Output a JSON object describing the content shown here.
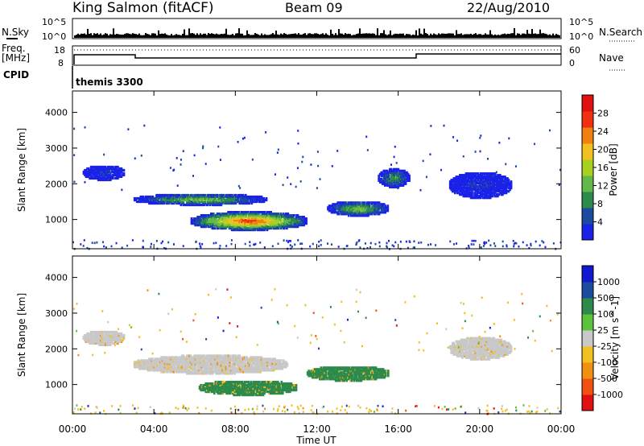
{
  "header": {
    "title": "King Salmon (fitACF)",
    "beam": "Beam 09",
    "date": "22/Aug/2010"
  },
  "noise_panel": {
    "left_label": "N.Sky",
    "right_label": "N.Search",
    "ticks": [
      "10^5",
      "10^0"
    ]
  },
  "freq_panel": {
    "left_label_1": "Freq.",
    "left_label_2": "[MHz]",
    "left_ticks": [
      "18",
      "8"
    ],
    "right_label": "Nave",
    "right_ticks": [
      "60",
      "0"
    ]
  },
  "cpid": {
    "label": "CPID",
    "value": "themis 3300"
  },
  "x_axis": {
    "title": "Time UT",
    "ticks": [
      "00:00",
      "04:00",
      "08:00",
      "12:00",
      "16:00",
      "20:00",
      "00:00"
    ]
  },
  "colors": {
    "power": [
      "#1a22e8",
      "#1c4a9e",
      "#2c8a4a",
      "#64b84a",
      "#a8d020",
      "#f0c020",
      "#f08010",
      "#f03010",
      "#e01010"
    ],
    "velocity": [
      "#1018d0",
      "#1c4a9e",
      "#2c8a4a",
      "#5cc23c",
      "#c8c8c8",
      "#f0c020",
      "#f09010",
      "#f05010",
      "#e01010"
    ],
    "power_colorbar_ticks": [
      "28",
      "24",
      "20",
      "16",
      "12",
      "8",
      "4"
    ],
    "velocity_colorbar_ticks": [
      "1000",
      "500",
      "100",
      "25",
      "-25",
      "-100",
      "-500",
      "-1000"
    ]
  },
  "chart_data": [
    {
      "type": "heatmap",
      "title": "",
      "xlabel": "",
      "ylabel": "Slant Range [km]",
      "colorbar_label": "Power [dB]",
      "xlim": [
        0,
        24
      ],
      "ylim": [
        180,
        4600
      ],
      "y_ticks": [
        "1000",
        "2000",
        "3000",
        "4000"
      ],
      "colorbar_ticks": [
        "28",
        "24",
        "20",
        "16",
        "12",
        "8",
        "4"
      ],
      "regions": [
        {
          "time_range": [
            5.8,
            11.5
          ],
          "range_km": [
            700,
            1200
          ],
          "value_db": 28
        },
        {
          "time_range": [
            3.0,
            9.5
          ],
          "range_km": [
            1400,
            1700
          ],
          "value_db": 16
        },
        {
          "time_range": [
            12.5,
            15.5
          ],
          "range_km": [
            1100,
            1500
          ],
          "value_db": 16
        },
        {
          "time_range": [
            0.5,
            2.5
          ],
          "range_km": [
            2100,
            2500
          ],
          "value_db": 8
        },
        {
          "time_range": [
            15.0,
            16.5
          ],
          "range_km": [
            1900,
            2400
          ],
          "value_db": 12
        },
        {
          "time_range": [
            18.5,
            21.5
          ],
          "range_km": [
            1600,
            2300
          ],
          "value_db": 8
        }
      ]
    },
    {
      "type": "heatmap",
      "title": "",
      "xlabel": "Time UT",
      "ylabel": "Slant Range [km]",
      "colorbar_label": "Velocity [m s^-1]",
      "xlim": [
        0,
        24
      ],
      "ylim": [
        180,
        4600
      ],
      "y_ticks": [
        "1000",
        "2000",
        "3000",
        "4000"
      ],
      "colorbar_ticks": [
        "1000",
        "500",
        "100",
        "25",
        "-25",
        "-100",
        "-500",
        "-1000"
      ],
      "regions": [
        {
          "time_range": [
            6.2,
            11.0
          ],
          "range_km": [
            700,
            1100
          ],
          "value_ms": 150
        },
        {
          "time_range": [
            11.5,
            15.5
          ],
          "range_km": [
            1100,
            1500
          ],
          "value_ms": 120
        },
        {
          "time_range": [
            3.0,
            10.5
          ],
          "range_km": [
            1300,
            1800
          ],
          "value_ms": 0
        },
        {
          "time_range": [
            0.5,
            2.5
          ],
          "range_km": [
            2100,
            2500
          ],
          "value_ms": 0
        },
        {
          "time_range": [
            18.5,
            21.5
          ],
          "range_km": [
            1700,
            2300
          ],
          "value_ms": 0
        }
      ]
    }
  ]
}
